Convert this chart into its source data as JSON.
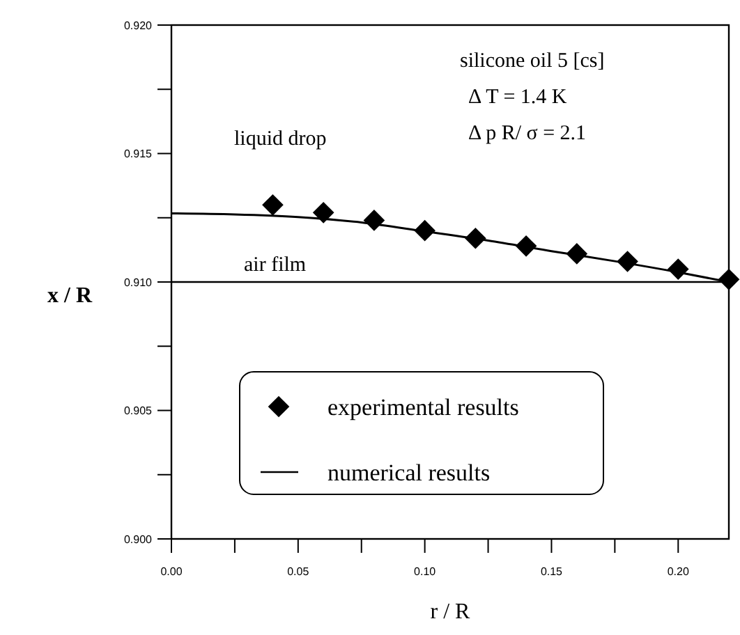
{
  "chart_data": {
    "type": "scatter",
    "xlabel": "r / R",
    "ylabel": "x / R",
    "xlim": [
      0,
      0.22
    ],
    "xticks": [
      {
        "value": 0,
        "label": "0.00"
      },
      {
        "value": 0.025,
        "label": null
      },
      0.05,
      {
        "value": 0.075,
        "label": null
      },
      {
        "value": 0.1,
        "label": "0.10"
      },
      {
        "value": 0.125,
        "label": null
      },
      0.15,
      {
        "value": 0.175,
        "label": null
      },
      {
        "value": 0.2,
        "label": "0.20"
      }
    ],
    "ylim": [
      0.9,
      0.92
    ],
    "yticks": [
      {
        "value": 0.9,
        "label": "0.900"
      },
      {
        "value": 0.9025,
        "label": null
      },
      0.905,
      {
        "value": 0.9075,
        "label": null
      },
      {
        "value": 0.91,
        "label": "0.910"
      },
      {
        "value": 0.9125,
        "label": null
      },
      0.915,
      {
        "value": 0.9175,
        "label": null
      },
      {
        "value": 0.92,
        "label": "0.920"
      }
    ],
    "series": [
      {
        "name": "experimental results",
        "color": "#000000",
        "marker": "diamond",
        "x": [
          0.04,
          0.06,
          0.08,
          0.1,
          0.12,
          0.14,
          0.16,
          0.18,
          0.2,
          0.22
        ],
        "values": [
          0.913,
          0.9127,
          0.9124,
          0.912,
          0.9117,
          0.9114,
          0.9111,
          0.9108,
          0.9105,
          0.9101
        ]
      },
      {
        "name": "numerical results",
        "type": "line",
        "color": "#000000",
        "marker": "none",
        "line_style": "solid",
        "x": [
          0,
          0.025,
          0.05,
          0.075,
          0.1,
          0.125,
          0.15,
          0.175,
          0.2,
          0.22
        ],
        "values": [
          0.91267,
          0.91263,
          0.91253,
          0.91232,
          0.91197,
          0.91161,
          0.9112,
          0.91081,
          0.91038,
          0.91
        ]
      }
    ],
    "ref_lines": [
      {
        "axis": "y",
        "value": 0.91,
        "label": "air film",
        "color": "#000000"
      }
    ],
    "annotations": [
      "liquid drop",
      "silicone oil 5 [cs]",
      "Δ T = 1.4 K",
      "Δ p R/ σ = 2.1"
    ],
    "legend": "bottom",
    "grid": false
  }
}
